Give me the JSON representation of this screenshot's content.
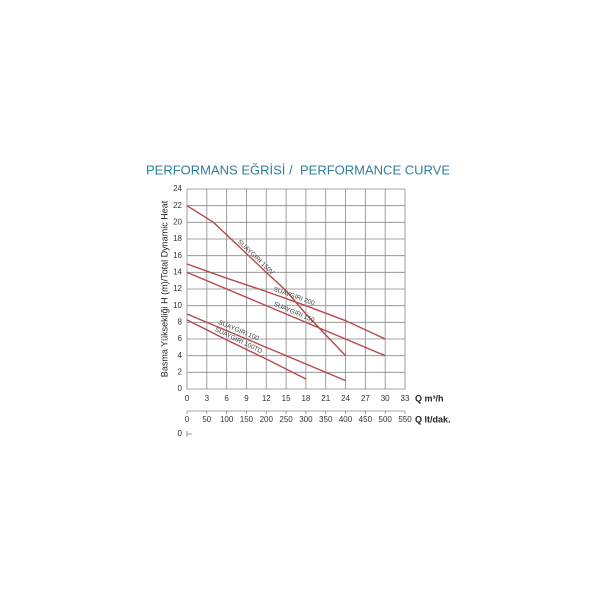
{
  "chart_data": {
    "type": "line",
    "title": "PERFORMANS EĞRİSİ /",
    "subtitle": "PERFORMANCE CURVE",
    "y_label": "Basma Yüksekliği H (m)/Total Dynamic Heat",
    "x_label": "Q m³/h",
    "x2_label": "Q lt/dak.",
    "xlim": [
      0,
      33
    ],
    "xticks": [
      0,
      3,
      6,
      9,
      12,
      15,
      18,
      21,
      24,
      27,
      30,
      33
    ],
    "x2lim": [
      0,
      550
    ],
    "x2ticks": [
      0,
      50,
      100,
      150,
      200,
      250,
      300,
      350,
      400,
      450,
      500,
      550
    ],
    "x3ticks": [
      0
    ],
    "ylim": [
      0,
      24
    ],
    "yticks": [
      0,
      2,
      4,
      6,
      8,
      10,
      12,
      14,
      16,
      18,
      20,
      22,
      24
    ],
    "grid": true,
    "series": [
      {
        "name": "SUAYGIRI 150V",
        "color": "#b8474d",
        "x": [
          0,
          4,
          8,
          12,
          15,
          18,
          21,
          24
        ],
        "values": [
          22,
          20,
          17,
          14,
          11.8,
          9,
          6.5,
          4
        ]
      },
      {
        "name": "SUAYGIRI 200",
        "color": "#b8474d",
        "x": [
          0,
          6,
          12,
          18,
          24,
          30
        ],
        "values": [
          15,
          13.3,
          11.7,
          10,
          8.2,
          6
        ]
      },
      {
        "name": "SUAYGIRI 150",
        "color": "#b8474d",
        "x": [
          0,
          6,
          12,
          18,
          24,
          30
        ],
        "values": [
          14,
          12,
          10,
          8,
          6,
          4
        ]
      },
      {
        "name": "SUAYGIRI 100",
        "color": "#b8474d",
        "x": [
          0,
          6,
          12,
          18,
          24
        ],
        "values": [
          9,
          7,
          5,
          3,
          1
        ]
      },
      {
        "name": "SUAYGIRI 100TD",
        "color": "#b8474d",
        "x": [
          0,
          6,
          12,
          18
        ],
        "values": [
          8.3,
          5.9,
          3.6,
          1.2
        ]
      }
    ]
  }
}
